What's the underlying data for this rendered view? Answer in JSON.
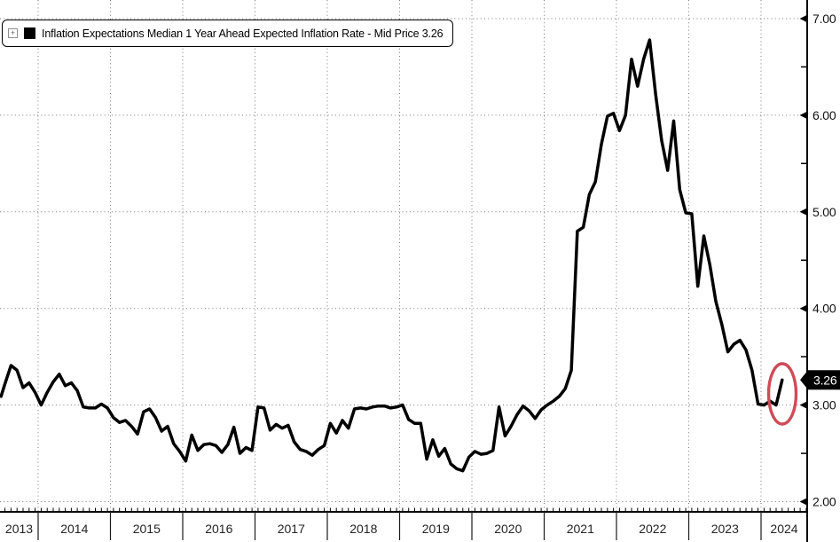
{
  "legend": {
    "expand_glyph": "+",
    "expand_icon": "plus-box-icon",
    "marker_color": "#000000",
    "label": "Inflation Expectations Median 1 Year Ahead Expected Inflation Rate - Mid Price 3.26"
  },
  "last_price_badge": {
    "text": "3.26",
    "bg": "#000000",
    "fg": "#ffffff"
  },
  "annotation": {
    "type": "ellipse-highlight",
    "color": "#cf4b58"
  },
  "colors": {
    "background": "#ffffff",
    "line": "#000000",
    "grid": "#7a7a7a",
    "axis": "#000000",
    "year_label": "#242424"
  },
  "chart_data": {
    "type": "line",
    "title": "Inflation Expectations Median 1 Year Ahead Expected Inflation Rate - Mid Price",
    "frequency": "monthly",
    "x_start": "2013-06",
    "x_end": "2024-04",
    "x_tick_labels": [
      "2013",
      "2014",
      "2015",
      "2016",
      "2017",
      "2018",
      "2019",
      "2020",
      "2021",
      "2022",
      "2023",
      "2024"
    ],
    "y_tick_labels": [
      "2.00",
      "3.00",
      "4.00",
      "5.00",
      "6.00",
      "7.00"
    ],
    "ylim": [
      2.0,
      7.0
    ],
    "y_minor_tick_step": 0.5,
    "grid": "dotted",
    "legend_position": "top-left",
    "last_value": 3.26,
    "values": [
      3.09,
      3.22,
      3.41,
      3.36,
      3.18,
      3.23,
      3.13,
      3.0,
      3.13,
      3.24,
      3.32,
      3.2,
      3.23,
      3.15,
      2.98,
      2.97,
      2.97,
      3.01,
      2.97,
      2.87,
      2.82,
      2.84,
      2.78,
      2.7,
      2.93,
      2.96,
      2.87,
      2.73,
      2.78,
      2.6,
      2.52,
      2.42,
      2.69,
      2.53,
      2.59,
      2.6,
      2.58,
      2.51,
      2.59,
      2.77,
      2.5,
      2.56,
      2.53,
      2.98,
      2.97,
      2.74,
      2.8,
      2.76,
      2.79,
      2.62,
      2.54,
      2.52,
      2.48,
      2.54,
      2.58,
      2.81,
      2.71,
      2.84,
      2.76,
      2.96,
      2.97,
      2.96,
      2.98,
      2.99,
      2.99,
      2.97,
      2.98,
      3.0,
      2.85,
      2.81,
      2.81,
      2.44,
      2.64,
      2.47,
      2.55,
      2.39,
      2.34,
      2.32,
      2.46,
      2.52,
      2.49,
      2.5,
      2.53,
      2.98,
      2.68,
      2.78,
      2.9,
      2.99,
      2.94,
      2.86,
      2.95,
      3.0,
      3.04,
      3.09,
      3.17,
      3.36,
      4.8,
      4.84,
      5.18,
      5.31,
      5.7,
      5.99,
      6.02,
      5.84,
      6.0,
      6.58,
      6.3,
      6.58,
      6.78,
      6.22,
      5.74,
      5.43,
      5.94,
      5.23,
      4.99,
      4.98,
      4.23,
      4.75,
      4.45,
      4.07,
      3.83,
      3.55,
      3.63,
      3.67,
      3.57,
      3.36,
      3.01,
      3.0,
      3.04,
      3.0,
      3.26
    ]
  }
}
